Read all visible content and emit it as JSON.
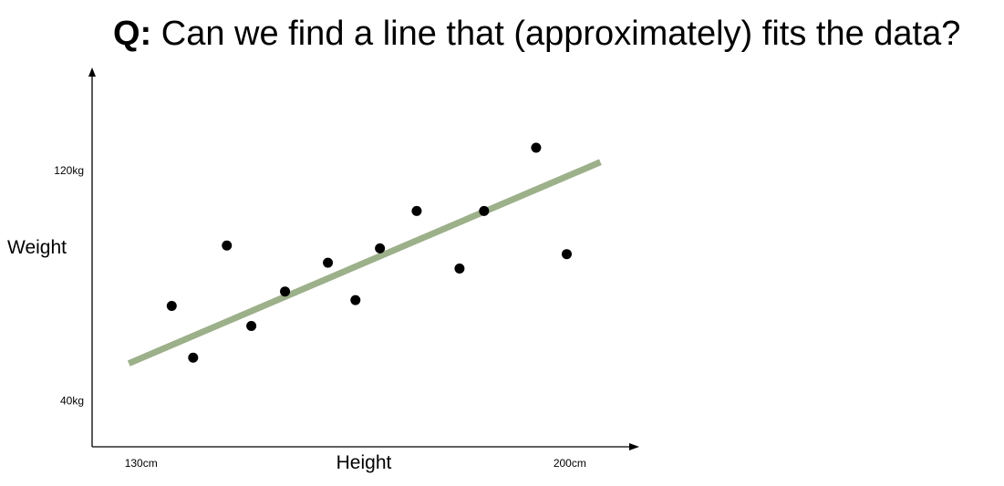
{
  "title": {
    "prefix": "Q:",
    "text": "Can we find a line that (approximately) fits the data?"
  },
  "colors": {
    "points": "#000000",
    "fit_line": "#9cb08a",
    "axes": "#000000"
  },
  "chart_data": {
    "type": "scatter",
    "title": "",
    "xlabel": "Height",
    "ylabel": "Weight",
    "x_unit": "cm",
    "y_unit": "kg",
    "xlim": [
      122,
      210
    ],
    "ylim": [
      24,
      154
    ],
    "x_ticks": [
      {
        "value": 130,
        "label": "130cm"
      },
      {
        "value": 200,
        "label": "200cm"
      }
    ],
    "y_ticks": [
      {
        "value": 40,
        "label": "40kg"
      },
      {
        "value": 120,
        "label": "120kg"
      }
    ],
    "grid": false,
    "legend": "none",
    "points": [
      {
        "x": 135,
        "y": 73
      },
      {
        "x": 138.5,
        "y": 55
      },
      {
        "x": 144,
        "y": 94
      },
      {
        "x": 148,
        "y": 66
      },
      {
        "x": 153.5,
        "y": 78
      },
      {
        "x": 160.5,
        "y": 88
      },
      {
        "x": 165,
        "y": 75
      },
      {
        "x": 169,
        "y": 93
      },
      {
        "x": 175,
        "y": 106
      },
      {
        "x": 182,
        "y": 86
      },
      {
        "x": 186,
        "y": 106
      },
      {
        "x": 194.5,
        "y": 128
      },
      {
        "x": 199.5,
        "y": 91
      }
    ],
    "fit_line": {
      "x": [
        128,
        205
      ],
      "y": [
        53,
        123
      ]
    }
  }
}
